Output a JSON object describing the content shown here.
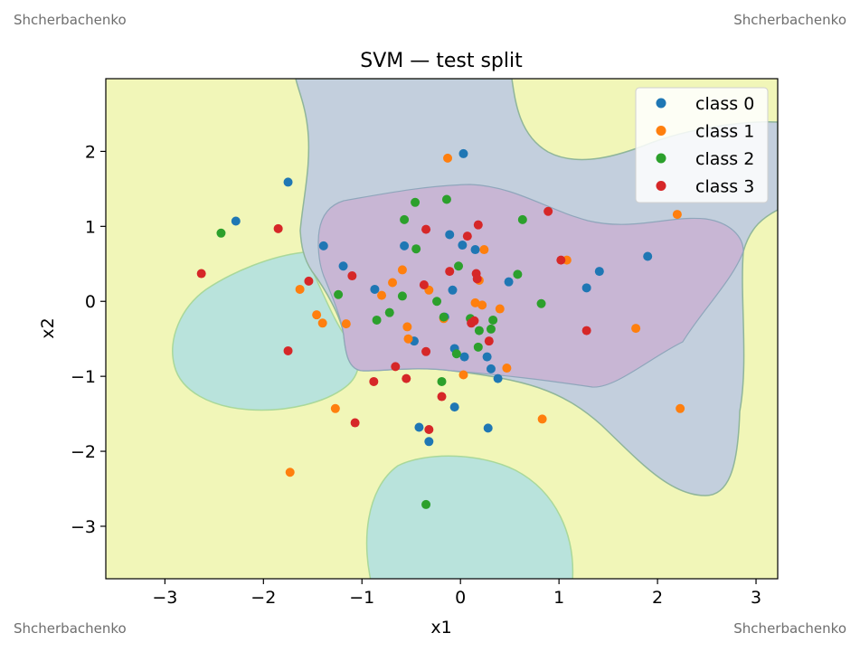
{
  "watermarks": {
    "top_left": "Shcherbachenko",
    "top_right": "Shcherbachenko",
    "bottom_left": "Shcherbachenko",
    "bottom_right": "Shcherbachenko"
  },
  "chart_data": {
    "type": "scatter",
    "title": "SVM — test split",
    "xlabel": "x1",
    "ylabel": "x2",
    "xlim": [
      -3.6,
      3.22
    ],
    "ylim": [
      -3.7,
      2.97
    ],
    "xticks": [
      -3,
      -2,
      -1,
      0,
      1,
      2,
      3
    ],
    "yticks": [
      -3,
      -2,
      -1,
      0,
      1,
      2
    ],
    "tick_labels_x": [
      "−3",
      "−2",
      "−1",
      "0",
      "1",
      "2",
      "3"
    ],
    "tick_labels_y": [
      "−3",
      "−2",
      "−1",
      "0",
      "1",
      "2"
    ],
    "grid": false,
    "legend_position": "top-right",
    "background_region_color": "#f1f6b8",
    "regions": [
      {
        "class": "class 1",
        "color": "#b9e3dc",
        "label": "decision region 1 (left)"
      },
      {
        "class": "class 1",
        "color": "#b9e3dc",
        "label": "decision region 1 (bottom)"
      },
      {
        "class": "class 0",
        "color": "#c3cfdd",
        "label": "decision region 0"
      },
      {
        "class": "class 3",
        "color": "#c8b6d4",
        "label": "decision region 3"
      }
    ],
    "series": [
      {
        "name": "class 0",
        "color": "#1f77b4",
        "points": [
          [
            -2.28,
            1.07
          ],
          [
            -1.75,
            1.59
          ],
          [
            -1.39,
            0.74
          ],
          [
            -1.19,
            0.47
          ],
          [
            -0.87,
            0.16
          ],
          [
            -0.57,
            0.74
          ],
          [
            -0.47,
            -0.53
          ],
          [
            -0.42,
            -1.68
          ],
          [
            -0.32,
            -1.87
          ],
          [
            -0.16,
            -0.21
          ],
          [
            -0.11,
            0.89
          ],
          [
            -0.08,
            0.15
          ],
          [
            -0.06,
            -0.63
          ],
          [
            -0.06,
            -1.41
          ],
          [
            0.02,
            0.75
          ],
          [
            0.03,
            1.97
          ],
          [
            0.04,
            -0.74
          ],
          [
            0.15,
            0.69
          ],
          [
            0.27,
            -0.74
          ],
          [
            0.28,
            -1.69
          ],
          [
            0.31,
            -0.9
          ],
          [
            0.38,
            -1.03
          ],
          [
            0.49,
            0.26
          ],
          [
            1.28,
            0.18
          ],
          [
            1.41,
            0.4
          ],
          [
            1.9,
            0.6
          ]
        ]
      },
      {
        "name": "class 1",
        "color": "#ff7f0e",
        "points": [
          [
            -1.73,
            -2.28
          ],
          [
            -1.63,
            0.16
          ],
          [
            -1.46,
            -0.18
          ],
          [
            -1.4,
            -0.29
          ],
          [
            -1.27,
            -1.43
          ],
          [
            -1.16,
            -0.3
          ],
          [
            -0.8,
            0.08
          ],
          [
            -0.69,
            0.25
          ],
          [
            -0.59,
            0.42
          ],
          [
            -0.54,
            -0.34
          ],
          [
            -0.53,
            -0.5
          ],
          [
            -0.32,
            0.15
          ],
          [
            -0.17,
            -0.23
          ],
          [
            -0.13,
            1.91
          ],
          [
            0.03,
            -0.98
          ],
          [
            0.15,
            -0.02
          ],
          [
            0.19,
            0.28
          ],
          [
            0.22,
            -0.05
          ],
          [
            0.24,
            0.69
          ],
          [
            0.4,
            -0.1
          ],
          [
            0.47,
            -0.89
          ],
          [
            0.83,
            -1.57
          ],
          [
            1.08,
            0.55
          ],
          [
            1.78,
            -0.36
          ],
          [
            2.2,
            1.16
          ],
          [
            2.23,
            -1.43
          ]
        ]
      },
      {
        "name": "class 2",
        "color": "#2ca02c",
        "points": [
          [
            -2.43,
            0.91
          ],
          [
            -1.24,
            0.09
          ],
          [
            -0.85,
            -0.25
          ],
          [
            -0.72,
            -0.15
          ],
          [
            -0.59,
            0.07
          ],
          [
            -0.57,
            1.09
          ],
          [
            -0.46,
            1.32
          ],
          [
            -0.45,
            0.7
          ],
          [
            -0.35,
            -2.71
          ],
          [
            -0.24,
            0.0
          ],
          [
            -0.19,
            -1.07
          ],
          [
            -0.17,
            -0.21
          ],
          [
            -0.14,
            1.36
          ],
          [
            -0.04,
            -0.7
          ],
          [
            -0.02,
            0.47
          ],
          [
            0.1,
            -0.23
          ],
          [
            0.18,
            -0.61
          ],
          [
            0.19,
            -0.39
          ],
          [
            0.31,
            -0.37
          ],
          [
            0.33,
            -0.25
          ],
          [
            0.58,
            0.36
          ],
          [
            0.63,
            1.09
          ],
          [
            0.82,
            -0.03
          ]
        ]
      },
      {
        "name": "class 3",
        "color": "#d62728",
        "points": [
          [
            -2.63,
            0.37
          ],
          [
            -1.85,
            0.97
          ],
          [
            -1.75,
            -0.66
          ],
          [
            -1.54,
            0.27
          ],
          [
            -1.1,
            0.34
          ],
          [
            -1.07,
            -1.62
          ],
          [
            -0.88,
            -1.07
          ],
          [
            -0.66,
            -0.87
          ],
          [
            -0.55,
            -1.03
          ],
          [
            -0.37,
            0.22
          ],
          [
            -0.35,
            -0.67
          ],
          [
            -0.35,
            0.96
          ],
          [
            -0.32,
            -1.71
          ],
          [
            -0.19,
            -1.27
          ],
          [
            -0.11,
            0.4
          ],
          [
            0.07,
            0.87
          ],
          [
            0.11,
            -0.29
          ],
          [
            0.14,
            -0.26
          ],
          [
            0.16,
            0.37
          ],
          [
            0.17,
            0.3
          ],
          [
            0.18,
            1.02
          ],
          [
            0.29,
            -0.53
          ],
          [
            0.89,
            1.2
          ],
          [
            1.02,
            0.55
          ],
          [
            1.28,
            -0.39
          ]
        ]
      }
    ]
  }
}
